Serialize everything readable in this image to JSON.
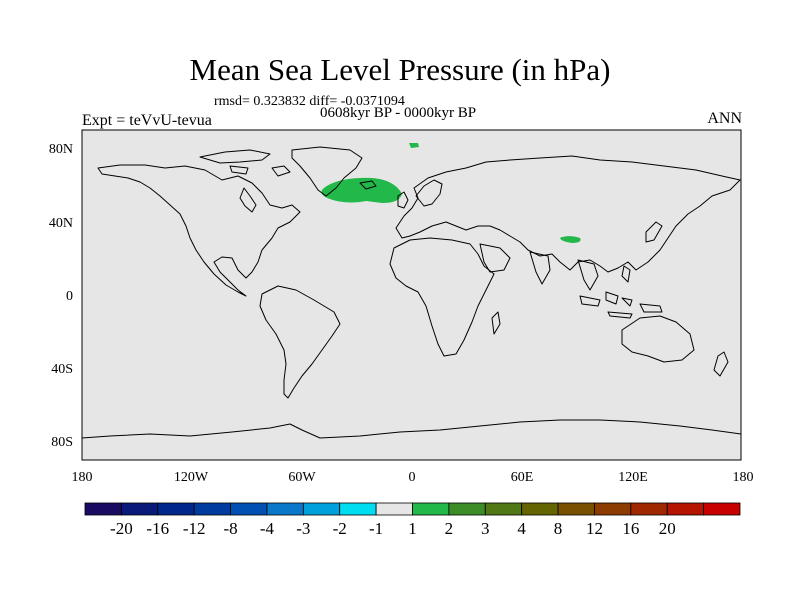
{
  "title": "Mean Sea Level Pressure (in hPa)",
  "stats_line": "rmsd= 0.323832 diff= -0.0371094",
  "period_line": "0608kyr BP - 0000kyr BP",
  "experiment": "Expt = teVvU-tevua",
  "season": "ANN",
  "lat_ticks": [
    "80N",
    "40N",
    "0",
    "40S",
    "80S"
  ],
  "lon_ticks": [
    "180",
    "120W",
    "60W",
    "0",
    "60E",
    "120E",
    "180"
  ],
  "colors": {
    "ocean_bg": "#e6e6e6",
    "anomaly_green": "#22b84a",
    "coast": "#000000"
  },
  "colorbar": {
    "colors": [
      "#1a0a60",
      "#0a1a7a",
      "#00288c",
      "#003ca0",
      "#0050b4",
      "#0a78c8",
      "#00a0dc",
      "#00dcf0",
      "#e6e6e6",
      "#22b84a",
      "#3c8c28",
      "#507814",
      "#646400",
      "#785000",
      "#8c3c00",
      "#a02800",
      "#b41400",
      "#c80000"
    ],
    "labels": [
      "-20",
      "-16",
      "-12",
      "-8",
      "-4",
      "-3",
      "-2",
      "-1",
      "1",
      "2",
      "3",
      "4",
      "8",
      "12",
      "16",
      "20"
    ]
  },
  "anomaly_regions": [
    {
      "name": "north-atlantic",
      "lon_range": [
        -32,
        -2
      ],
      "lat_range": [
        54,
        67
      ],
      "level": "1 to 2 hPa"
    },
    {
      "name": "greenland-sea",
      "lon_range": [
        -1,
        2
      ],
      "lat_range": [
        80,
        82
      ],
      "level": "1 to 2 hPa"
    },
    {
      "name": "tibet",
      "lon_range": [
        82,
        91
      ],
      "lat_range": [
        30,
        33
      ],
      "level": "1 to 2 hPa"
    }
  ]
}
